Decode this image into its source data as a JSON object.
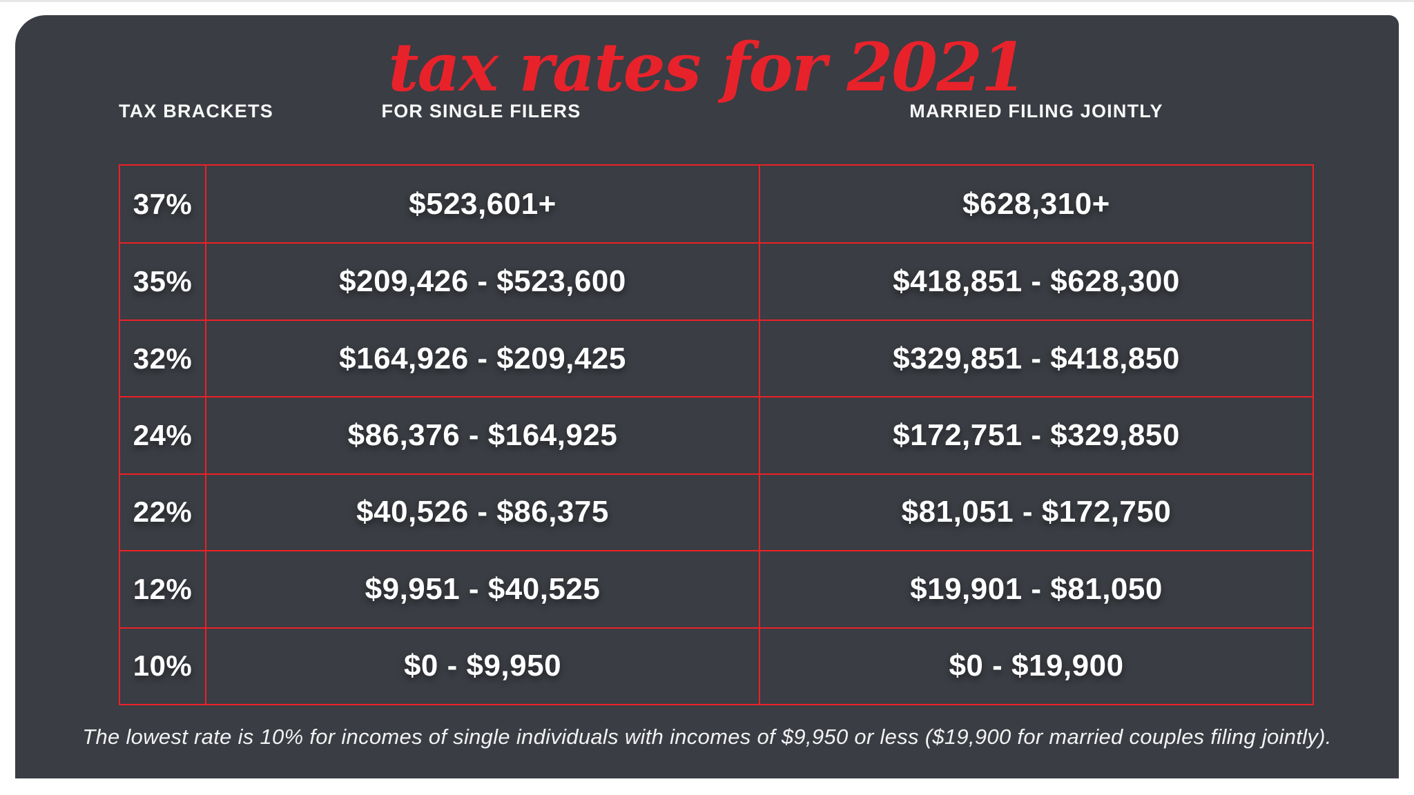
{
  "colors": {
    "page_background": "#ffffff",
    "card_background": "#3a3d43",
    "accent_red": "#e8222b",
    "grid_red": "#ed2027",
    "text_white": "#ffffff"
  },
  "title": "tax rates for 2021",
  "table": {
    "headers": {
      "brackets": "TAX BRACKETS",
      "single": "FOR SINGLE FILERS",
      "married": "MARRIED FILING JOINTLY"
    },
    "rows": [
      {
        "rate": "37%",
        "single": "$523,601+",
        "married": "$628,310+"
      },
      {
        "rate": "35%",
        "single": "$209,426 - $523,600",
        "married": "$418,851 - $628,300"
      },
      {
        "rate": "32%",
        "single": "$164,926 - $209,425",
        "married": "$329,851 - $418,850"
      },
      {
        "rate": "24%",
        "single": "$86,376 - $164,925",
        "married": "$172,751 - $329,850"
      },
      {
        "rate": "22%",
        "single": "$40,526 - $86,375",
        "married": "$81,051 - $172,750"
      },
      {
        "rate": "12%",
        "single": "$9,951 - $40,525",
        "married": "$19,901 - $81,050"
      },
      {
        "rate": "10%",
        "single": "$0 - $9,950",
        "married": "$0 - $19,900"
      }
    ]
  },
  "footnote": "The lowest rate is 10% for incomes of single individuals with incomes of $9,950 or less ($19,900 for married couples filing jointly).",
  "chart_data": {
    "type": "table",
    "title": "tax rates for 2021",
    "columns": [
      "TAX BRACKETS",
      "FOR SINGLE FILERS",
      "MARRIED FILING JOINTLY"
    ],
    "rows": [
      [
        "37%",
        "$523,601+",
        "$628,310+"
      ],
      [
        "35%",
        "$209,426 - $523,600",
        "$418,851 - $628,300"
      ],
      [
        "32%",
        "$164,926 - $209,425",
        "$329,851 - $418,850"
      ],
      [
        "24%",
        "$86,376 - $164,925",
        "$172,751 - $329,850"
      ],
      [
        "22%",
        "$40,526 - $86,375",
        "$81,051 - $172,750"
      ],
      [
        "12%",
        "$9,951 - $40,525",
        "$19,901 - $81,050"
      ],
      [
        "10%",
        "$0 - $9,950",
        "$0 - $19,900"
      ]
    ],
    "footnote": "The lowest rate is 10% for incomes of single individuals with incomes of $9,950 or less ($19,900 for married couples filing jointly)."
  }
}
